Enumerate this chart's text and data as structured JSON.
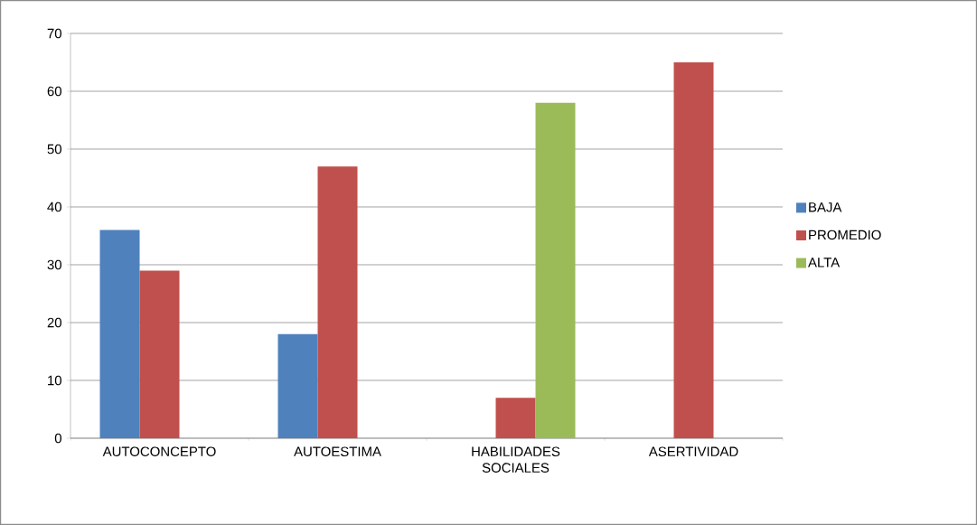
{
  "chart_data": {
    "type": "bar",
    "categories": [
      "AUTOCONCEPTO",
      "AUTOESTIMA",
      "HABILIDADES SOCIALES",
      "ASERTIVIDAD"
    ],
    "series": [
      {
        "name": "BAJA",
        "color": "#4f81bd",
        "values": [
          36,
          18,
          null,
          null
        ]
      },
      {
        "name": "PROMEDIO",
        "color": "#c0504d",
        "values": [
          29,
          47,
          7,
          65
        ]
      },
      {
        "name": "ALTA",
        "color": "#9bbb59",
        "values": [
          null,
          null,
          58,
          null
        ]
      }
    ],
    "ylim": [
      0,
      70
    ],
    "yticks": [
      0,
      10,
      20,
      30,
      40,
      50,
      60,
      70
    ],
    "grid": "y",
    "legend": "right"
  }
}
